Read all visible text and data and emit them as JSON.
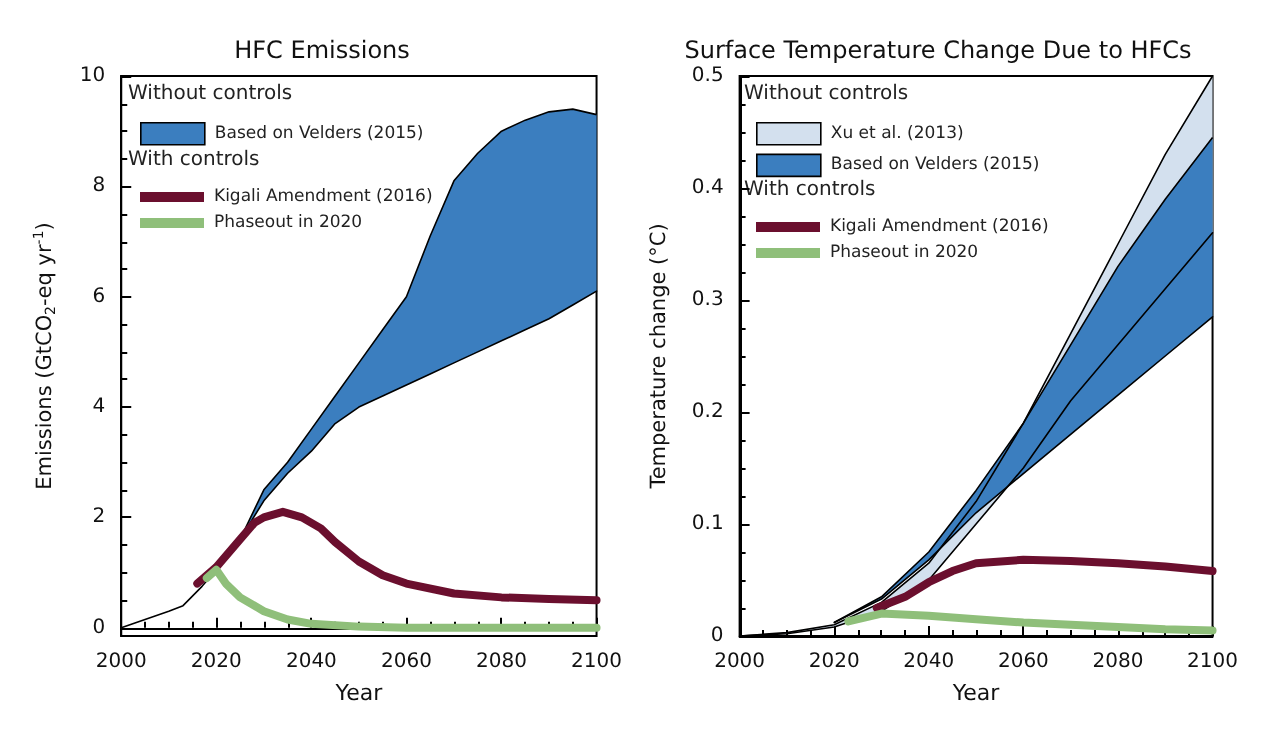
{
  "chart_data": [
    {
      "type": "line",
      "title": "HFC Emissions",
      "xlabel": "Year",
      "ylabel": "Emissions (GtCO$_{2}$-eq yr$^{-1}$)",
      "xlim": [
        2000,
        2100
      ],
      "ylim": [
        -0.15,
        10
      ],
      "xticks": [
        2000,
        2020,
        2040,
        2060,
        2080,
        2100
      ],
      "yticks": [
        0,
        2,
        4,
        6,
        8,
        10
      ],
      "legend": "top left",
      "annotations": [
        "Without controls",
        "With controls"
      ],
      "series": [
        {
          "type": "area",
          "name": "Based on Velders (2015)",
          "color": "#3b7ebf",
          "x": [
            2025,
            2030,
            2035,
            2040,
            2045,
            2050,
            2055,
            2060,
            2065,
            2070,
            2075,
            2080,
            2085,
            2090,
            2095,
            2100
          ],
          "values": [
            1.6,
            2.5,
            3.0,
            3.6,
            4.2,
            4.8,
            5.4,
            6.0,
            7.1,
            8.1,
            8.6,
            9.0,
            9.2,
            9.35,
            9.4,
            9.3
          ]
        },
        {
          "color": "#000000",
          "x": [
            2000,
            2005,
            2010,
            2013,
            2017,
            2020,
            2025,
            2030,
            2035,
            2040,
            2045,
            2050,
            2055,
            2060,
            2065,
            2070,
            2075,
            2080,
            2085,
            2090,
            2095,
            2100
          ],
          "values": [
            0,
            0.15,
            0.3,
            0.4,
            0.75,
            1.05,
            1.6,
            2.3,
            2.8,
            3.2,
            3.7,
            4.0,
            4.2,
            4.4,
            4.6,
            4.8,
            5.0,
            5.2,
            5.4,
            5.6,
            5.85,
            6.1
          ]
        },
        {
          "name": "Kigali Amendment (2016)",
          "color": "#6b0f2e",
          "x": [
            2016,
            2020,
            2025,
            2028,
            2030,
            2034,
            2038,
            2042,
            2045,
            2050,
            2055,
            2060,
            2070,
            2080,
            2090,
            2100
          ],
          "values": [
            0.8,
            1.1,
            1.6,
            1.9,
            2.0,
            2.1,
            2.0,
            1.8,
            1.55,
            1.2,
            0.95,
            0.8,
            0.62,
            0.55,
            0.52,
            0.5
          ]
        },
        {
          "name": "Phaseout in 2020",
          "color": "#8fbf7a",
          "x": [
            2018,
            2020,
            2022,
            2025,
            2030,
            2035,
            2040,
            2050,
            2060,
            2100
          ],
          "values": [
            0.9,
            1.05,
            0.8,
            0.55,
            0.3,
            0.15,
            0.07,
            0.02,
            0,
            0
          ]
        }
      ]
    },
    {
      "type": "line",
      "title": "Surface Temperature Change Due to HFCs",
      "xlabel": "Year",
      "ylabel": "Temperature change (°C)",
      "xlim": [
        2000,
        2100
      ],
      "ylim": [
        0,
        0.5
      ],
      "xticks": [
        2000,
        2020,
        2040,
        2060,
        2080,
        2100
      ],
      "yticks": [
        0,
        0.1,
        0.2,
        0.3,
        0.4,
        0.5
      ],
      "legend": "top left",
      "annotations": [
        "Without controls",
        "With controls"
      ],
      "series": [
        {
          "type": "area",
          "name": "Xu et al. (2013)",
          "color": "#d3e0ee",
          "x": [
            2000,
            2010,
            2020,
            2030,
            2040,
            2050,
            2060,
            2070,
            2080,
            2090,
            2100
          ],
          "values": [
            0,
            0.003,
            0.01,
            0.03,
            0.065,
            0.12,
            0.19,
            0.27,
            0.35,
            0.43,
            0.5
          ]
        },
        {
          "color": "#000000",
          "x": [
            2000,
            2010,
            2020,
            2030,
            2040,
            2050,
            2060,
            2070,
            2080,
            2090,
            2100
          ],
          "values": [
            0,
            0.002,
            0.008,
            0.022,
            0.05,
            0.1,
            0.15,
            0.21,
            0.26,
            0.31,
            0.36
          ]
        },
        {
          "type": "area",
          "name": "Based on Velders (2015)",
          "color": "#3b7ebf",
          "x": [
            2020,
            2030,
            2040,
            2050,
            2060,
            2070,
            2080,
            2090,
            2100
          ],
          "values": [
            0.012,
            0.035,
            0.075,
            0.13,
            0.19,
            0.26,
            0.33,
            0.39,
            0.445
          ]
        },
        {
          "color": "#000000",
          "x": [
            2020,
            2030,
            2040,
            2050,
            2060,
            2070,
            2080,
            2090,
            2100
          ],
          "values": [
            0.012,
            0.033,
            0.068,
            0.11,
            0.145,
            0.18,
            0.215,
            0.25,
            0.285
          ]
        },
        {
          "name": "Kigali Amendment (2016)",
          "color": "#6b0f2e",
          "x": [
            2029,
            2035,
            2040,
            2045,
            2050,
            2060,
            2070,
            2080,
            2090,
            2100
          ],
          "values": [
            0.025,
            0.035,
            0.048,
            0.058,
            0.065,
            0.068,
            0.067,
            0.065,
            0.062,
            0.058
          ]
        },
        {
          "name": "Phaseout in 2020",
          "color": "#8fbf7a",
          "x": [
            2023,
            2030,
            2040,
            2050,
            2060,
            2070,
            2080,
            2090,
            2100
          ],
          "values": [
            0.013,
            0.02,
            0.018,
            0.015,
            0.012,
            0.01,
            0.008,
            0.006,
            0.005
          ]
        }
      ]
    }
  ]
}
